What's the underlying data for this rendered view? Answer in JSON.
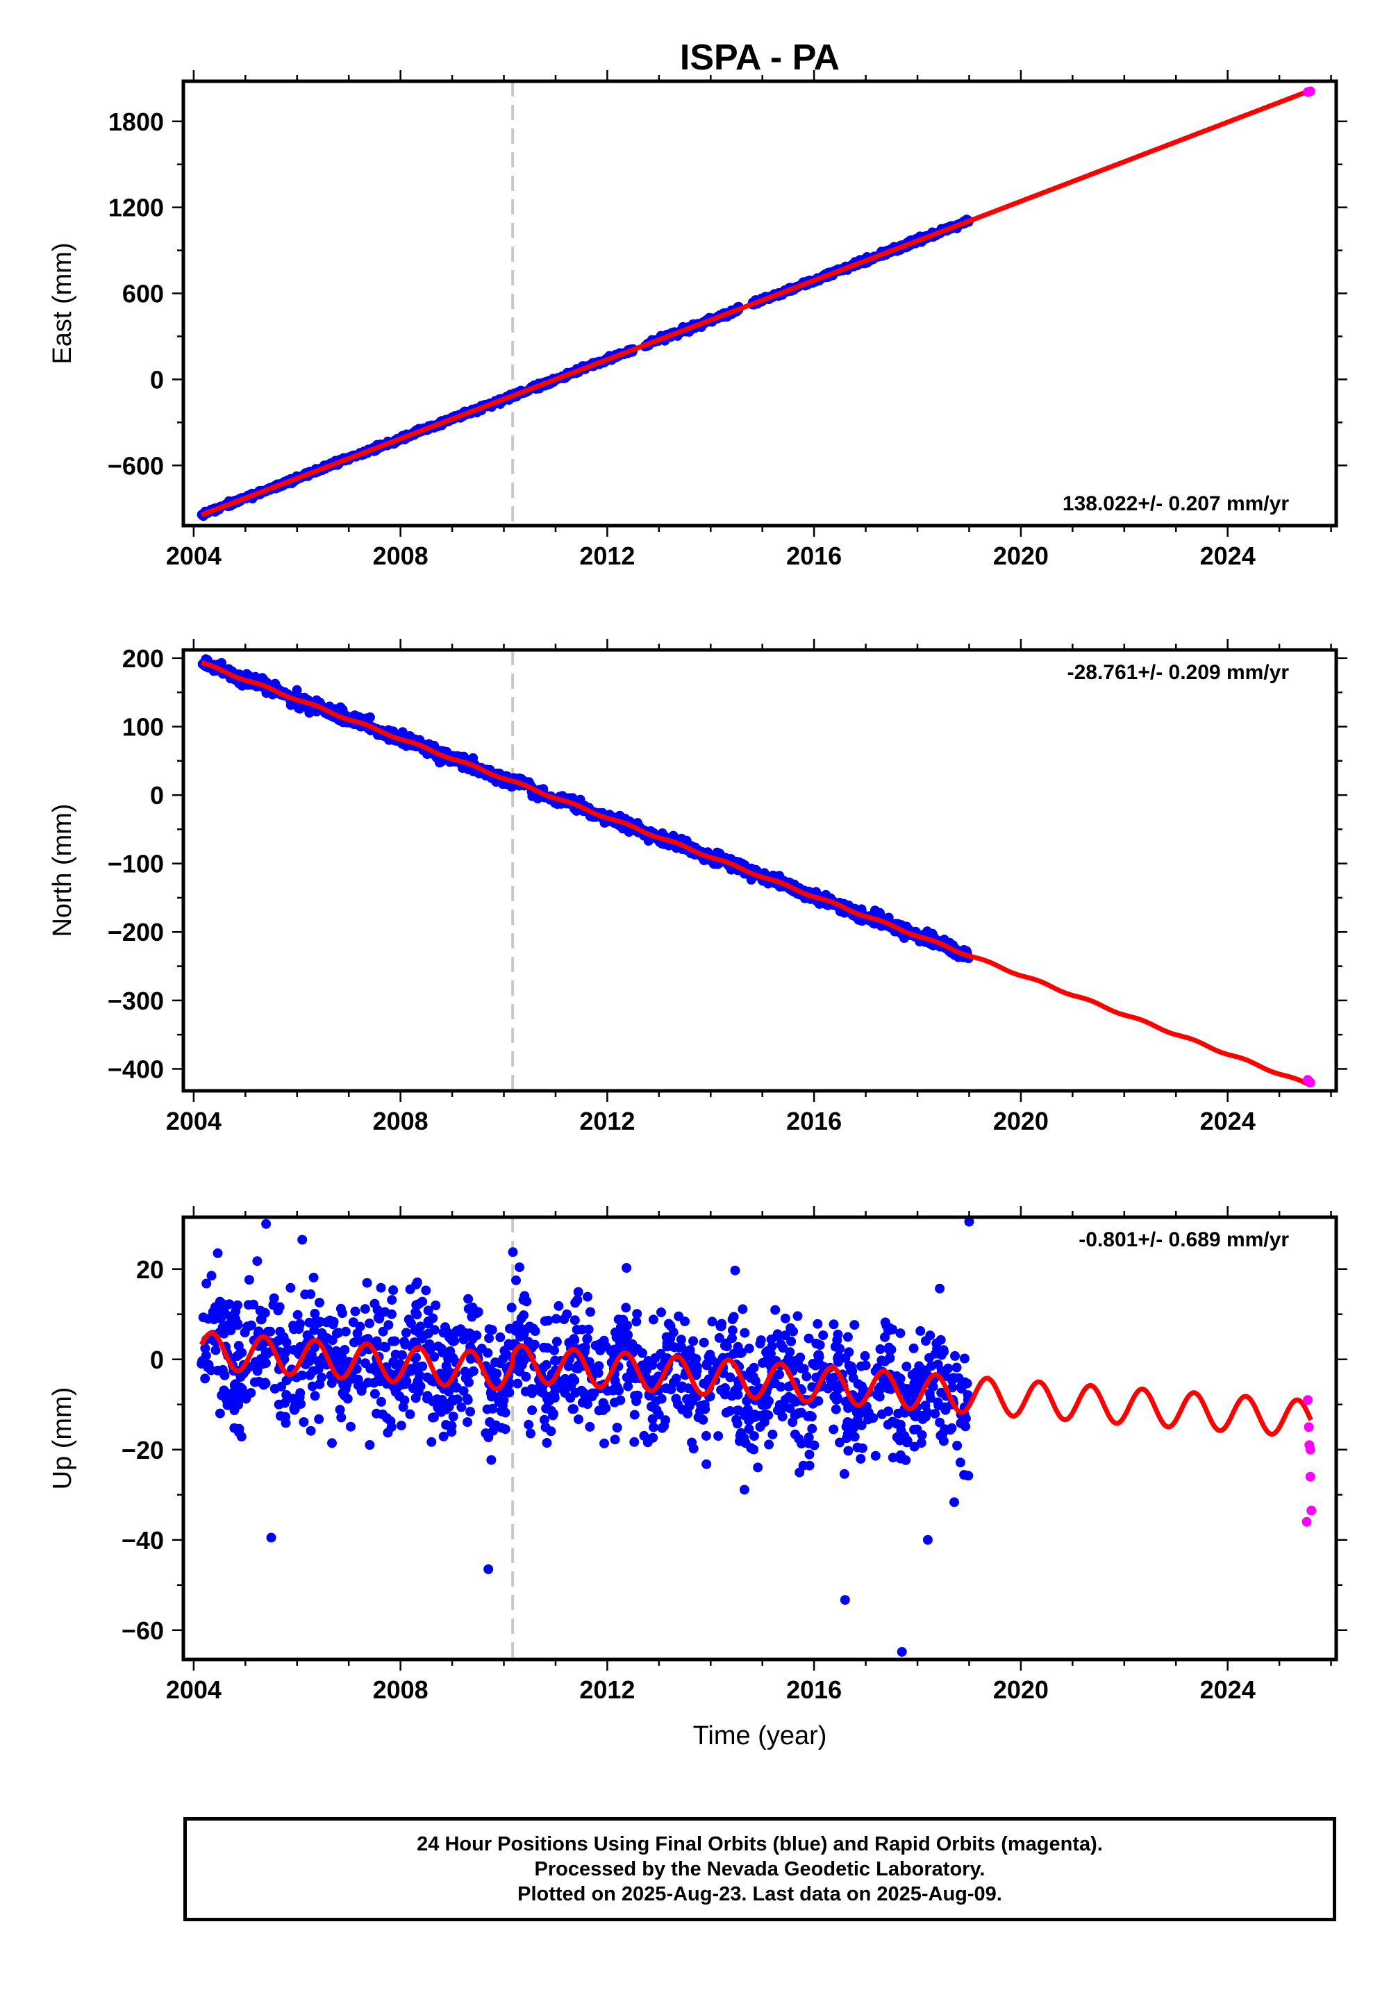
{
  "title": "ISPA - PA",
  "footer": {
    "line1": "24 Hour Positions Using Final Orbits (blue) and Rapid Orbits (magenta).",
    "line2": "Processed by the Nevada Geodetic Laboratory.",
    "line3": "Plotted on 2025-Aug-23. Last data on 2025-Aug-09."
  },
  "colors": {
    "final": "#0000ff",
    "rapid": "#ff00ff",
    "model": "#ff0000",
    "event": "#c8c8c8"
  },
  "chart_data": [
    {
      "type": "scatter",
      "ylabel": "East (mm)",
      "xlabel": "",
      "xlim": [
        2003.8,
        2026.1
      ],
      "ylim": [
        -1020,
        2080
      ],
      "xticks": [
        2004,
        2008,
        2012,
        2016,
        2020,
        2024
      ],
      "yticks": [
        -600,
        0,
        600,
        1200,
        1800
      ],
      "rate_label": "138.022+/- 0.207 mm/yr",
      "event_line": 2010.17,
      "final_data": {
        "start": 2004.15,
        "end": 2019.0,
        "value_at_start": -945,
        "rate": 138.022,
        "scatter": 8,
        "gaps": [
          [
            2012.5,
            2012.7
          ],
          [
            2014.6,
            2014.8
          ]
        ]
      },
      "rapid_data": [
        [
          2025.55,
          2005
        ],
        [
          2025.57,
          2007
        ],
        [
          2025.6,
          2010
        ]
      ],
      "model": {
        "start": 2004.15,
        "end": 2025.61,
        "value_at_start": -945,
        "rate": 138.022
      }
    },
    {
      "type": "scatter",
      "ylabel": "North (mm)",
      "xlabel": "",
      "xlim": [
        2003.8,
        2026.1
      ],
      "ylim": [
        -432,
        212
      ],
      "xticks": [
        2004,
        2008,
        2012,
        2016,
        2020,
        2024
      ],
      "yticks": [
        -400,
        -300,
        -200,
        -100,
        0,
        100,
        200
      ],
      "rate_label": "-28.761+/- 0.209 mm/yr",
      "event_line": 2010.17,
      "final_data": {
        "start": 2004.15,
        "end": 2019.0,
        "value_at_start": 193,
        "rate": -28.761,
        "scatter": 4
      },
      "rapid_data": [
        [
          2025.55,
          -416
        ],
        [
          2025.57,
          -418
        ],
        [
          2025.6,
          -420
        ]
      ],
      "model": {
        "start": 2004.15,
        "end": 2025.61,
        "value_at_start": 193,
        "rate": -28.761,
        "seasonal": 1.5
      }
    },
    {
      "type": "scatter",
      "ylabel": "Up (mm)",
      "xlabel": "Time (year)",
      "xlim": [
        2003.8,
        2026.1
      ],
      "ylim": [
        -66.5,
        31.5
      ],
      "xticks": [
        2004,
        2008,
        2012,
        2016,
        2020,
        2024
      ],
      "yticks": [
        -60,
        -40,
        -20,
        0,
        20
      ],
      "rate_label": "-0.801+/- 0.689 mm/yr",
      "event_line": 2010.17,
      "final_data": {
        "start": 2004.15,
        "end": 2019.0,
        "value_at_start": 1,
        "rate": -0.801,
        "scatter": 7,
        "outliers": [
          [
            2005.4,
            30
          ],
          [
            2006.1,
            26.5
          ],
          [
            2009.7,
            -46.5
          ],
          [
            2016.6,
            -53.3
          ],
          [
            2017.7,
            -64.8
          ],
          [
            2019.0,
            30.5
          ],
          [
            2005.5,
            -39.5
          ],
          [
            2018.2,
            -40
          ]
        ]
      },
      "rapid_data": [
        [
          2025.55,
          -9
        ],
        [
          2025.57,
          -15
        ],
        [
          2025.58,
          -19
        ],
        [
          2025.6,
          -20
        ],
        [
          2025.6,
          -26
        ],
        [
          2025.62,
          -33.5
        ],
        [
          2025.53,
          -36
        ]
      ],
      "model": {
        "start": 2004.15,
        "end": 2025.61,
        "value_at_start": 2,
        "rate": -0.801,
        "seasonal": 4,
        "offset_at": 2010.17,
        "offset": 2
      }
    }
  ]
}
